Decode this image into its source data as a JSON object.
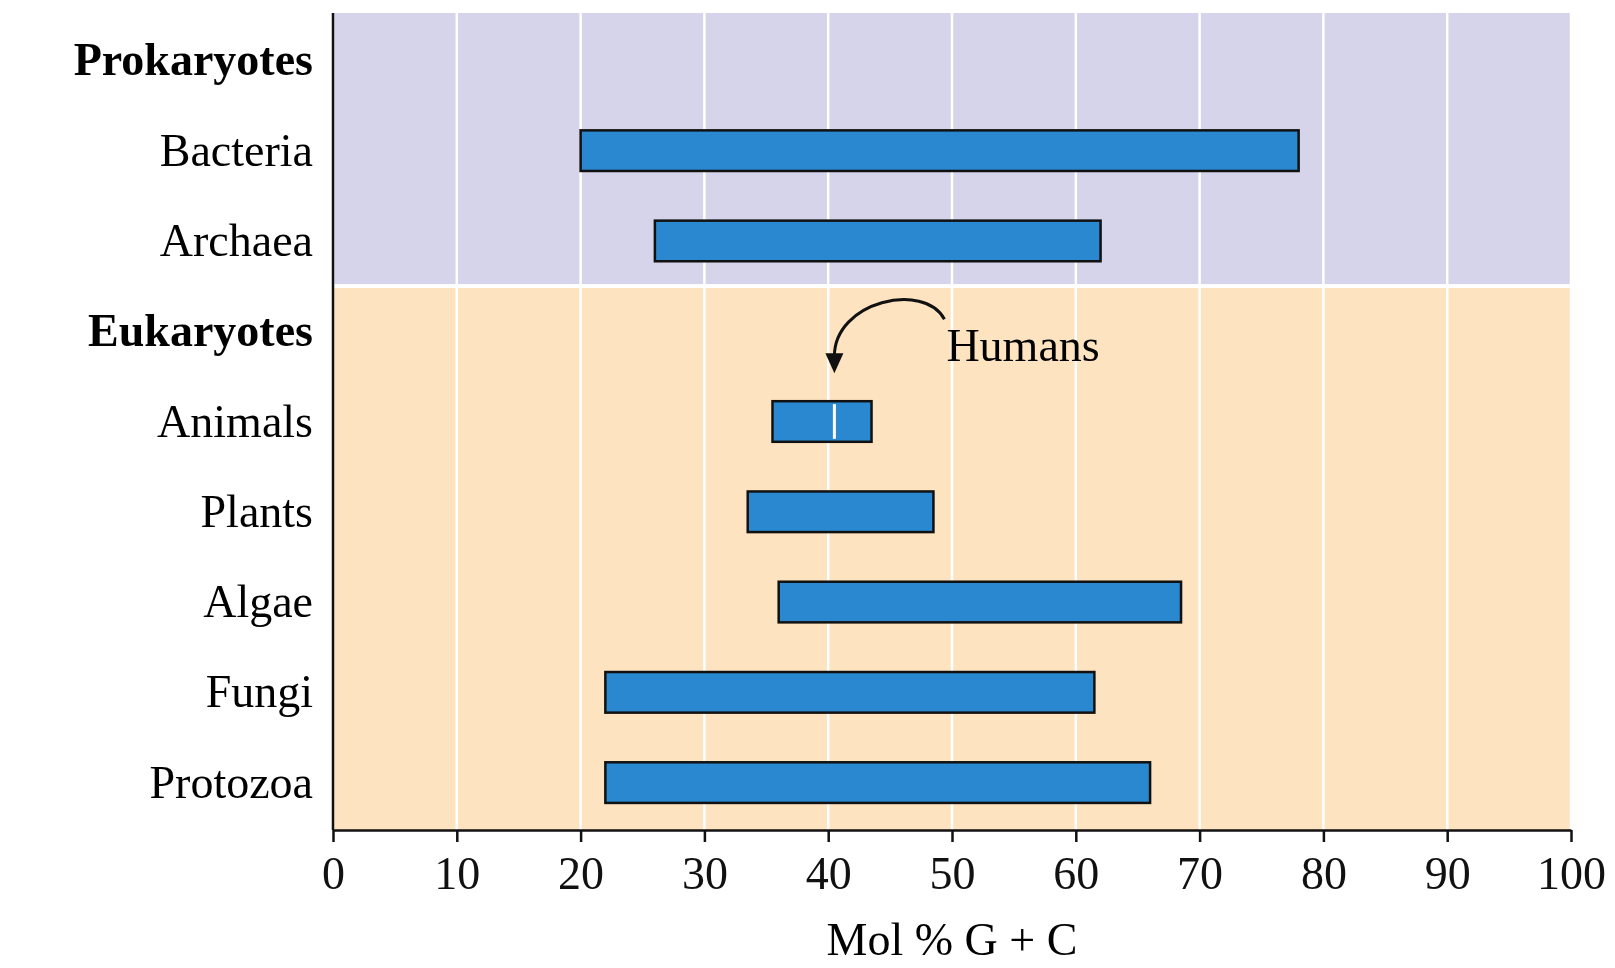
{
  "chart_data": {
    "type": "bar",
    "orientation": "horizontal",
    "categories": [
      "Prokaryotes",
      "Bacteria",
      "Archaea",
      "Eukaryotes",
      "Animals",
      "Plants",
      "Algae",
      "Fungi",
      "Protozoa"
    ],
    "values": [
      null,
      58,
      36,
      null,
      8,
      15,
      32.5,
      39.5,
      44
    ],
    "base": [
      null,
      20,
      26,
      null,
      35.5,
      33.5,
      36,
      22,
      22
    ],
    "color": "#2a88d0",
    "xlim": [
      0,
      100
    ],
    "xticks": [
      0,
      10,
      20,
      30,
      40,
      50,
      60,
      70,
      80,
      90,
      100
    ],
    "xlabel": "Mol % G + C",
    "grid": "x",
    "bands": [
      {
        "axis": "y",
        "from": "Prokaryotes",
        "to": "Archaea",
        "color": "#d6d4ea"
      },
      {
        "axis": "y",
        "from": "Eukaryotes",
        "to": "Protozoa",
        "color": "#fde3bf"
      }
    ],
    "annotations": [
      "Humans"
    ]
  }
}
